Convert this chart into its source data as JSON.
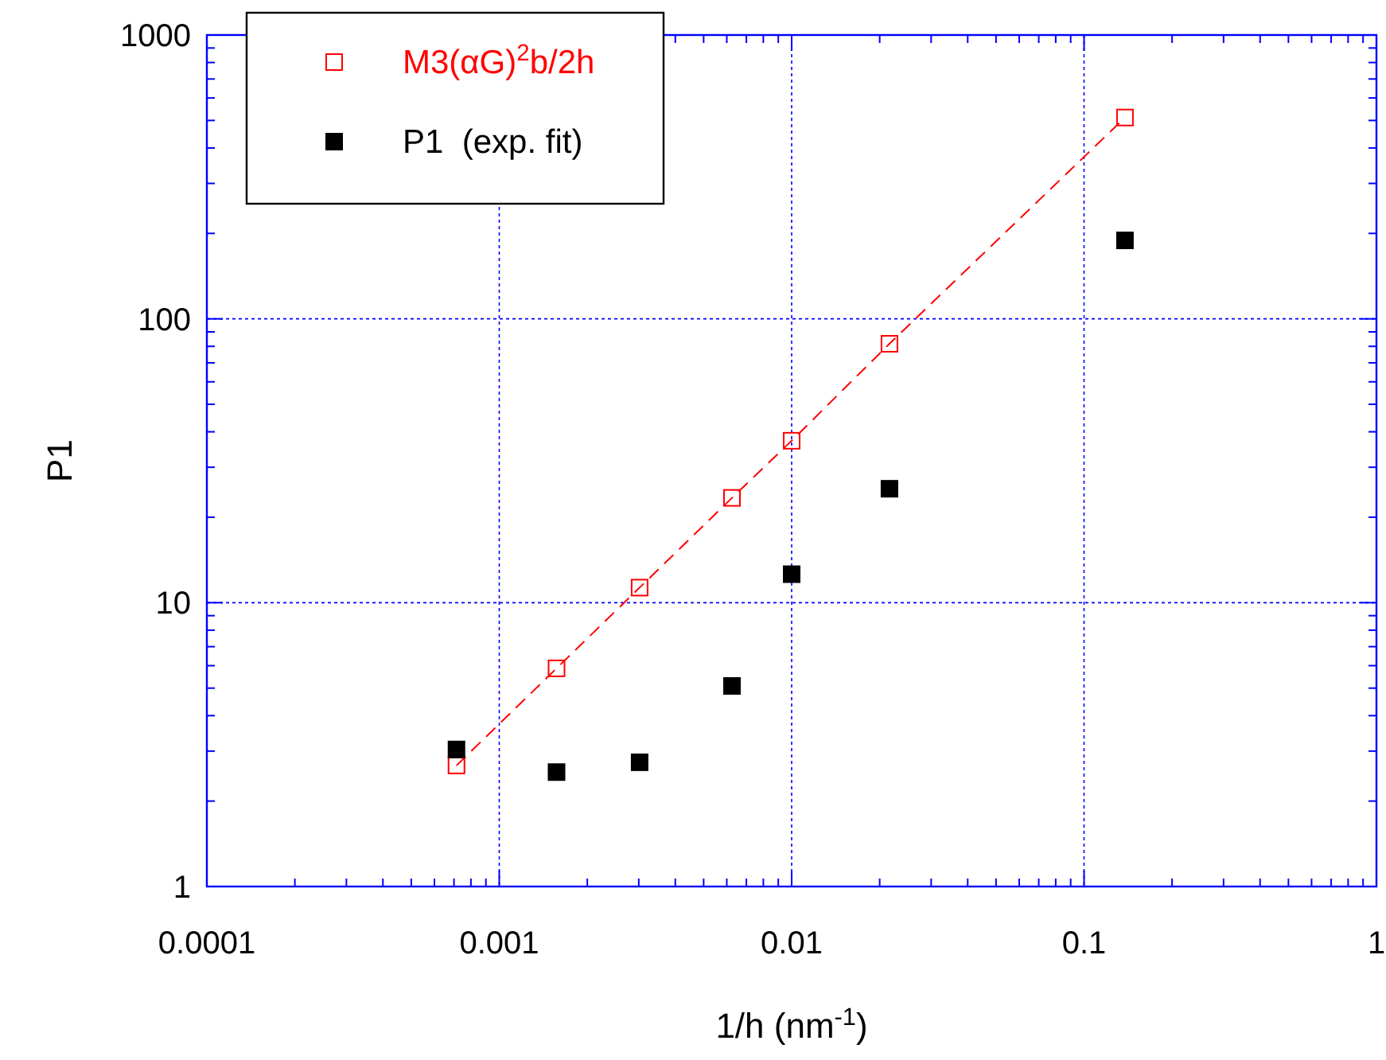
{
  "chart_data": {
    "type": "scatter",
    "xlabel": "1/h (nm$^{-1}$)",
    "ylabel": "P1",
    "log": "xy",
    "grid": true,
    "legend": "top left",
    "marker": "square",
    "xlim": [
      0.0001,
      1
    ],
    "ylim": [
      1,
      1000
    ],
    "xticks": [
      0.0001,
      {
        "value": 0.0002,
        "label": null
      },
      {
        "value": 0.0003,
        "label": null
      },
      {
        "value": 0.0004,
        "label": null
      },
      {
        "value": 0.0005,
        "label": null
      },
      {
        "value": 0.0006,
        "label": null
      },
      {
        "value": 0.0007,
        "label": null
      },
      {
        "value": 0.0008,
        "label": null
      },
      {
        "value": 0.0009,
        "label": null
      },
      0.001,
      {
        "value": 0.002,
        "label": null
      },
      {
        "value": 0.003,
        "label": null
      },
      {
        "value": 0.004,
        "label": null
      },
      {
        "value": 0.005,
        "label": null
      },
      {
        "value": 0.006,
        "label": null
      },
      {
        "value": 0.007,
        "label": null
      },
      {
        "value": 0.008,
        "label": null
      },
      {
        "value": 0.009,
        "label": null
      },
      0.01,
      {
        "value": 0.02,
        "label": null
      },
      {
        "value": 0.03,
        "label": null
      },
      {
        "value": 0.04,
        "label": null
      },
      {
        "value": 0.05,
        "label": null
      },
      {
        "value": 0.06,
        "label": null
      },
      {
        "value": 0.07,
        "label": null
      },
      {
        "value": 0.08,
        "label": null
      },
      {
        "value": 0.09,
        "label": null
      },
      0.1,
      {
        "value": 0.2,
        "label": null
      },
      {
        "value": 0.3,
        "label": null
      },
      {
        "value": 0.4,
        "label": null
      },
      {
        "value": 0.5,
        "label": null
      },
      {
        "value": 0.6,
        "label": null
      },
      {
        "value": 0.7,
        "label": null
      },
      {
        "value": 0.8,
        "label": null
      },
      {
        "value": 0.9,
        "label": null
      },
      1
    ],
    "yticks": [
      1,
      {
        "value": 2,
        "label": null
      },
      {
        "value": 3,
        "label": null
      },
      {
        "value": 4,
        "label": null
      },
      {
        "value": 5,
        "label": null
      },
      {
        "value": 6,
        "label": null
      },
      {
        "value": 7,
        "label": null
      },
      {
        "value": 8,
        "label": null
      },
      {
        "value": 9,
        "label": null
      },
      10,
      {
        "value": 20,
        "label": null
      },
      {
        "value": 30,
        "label": null
      },
      {
        "value": 40,
        "label": null
      },
      {
        "value": 50,
        "label": null
      },
      {
        "value": 60,
        "label": null
      },
      {
        "value": 70,
        "label": null
      },
      {
        "value": 80,
        "label": null
      },
      {
        "value": 90,
        "label": null
      },
      100,
      {
        "value": 200,
        "label": null
      },
      {
        "value": 300,
        "label": null
      },
      {
        "value": 400,
        "label": null
      },
      {
        "value": 500,
        "label": null
      },
      {
        "value": 600,
        "label": null
      },
      {
        "value": 700,
        "label": null
      },
      {
        "value": 800,
        "label": null
      },
      {
        "value": 900,
        "label": null
      },
      1000
    ],
    "series": [
      {
        "name": "M3(αG)$^{2}$b/2h",
        "type": "line",
        "line_style": "dashed",
        "color": "#ff0000",
        "x": [
          0.000714,
          0.00157,
          0.00302,
          0.00625,
          0.01,
          0.0216,
          0.138
        ],
        "values": [
          2.67,
          5.87,
          11.3,
          23.4,
          37.2,
          81.7,
          512
        ]
      },
      {
        "name": "P1  (exp. fit)",
        "color": "#000000",
        "x": [
          0.000714,
          0.00157,
          0.00302,
          0.00625,
          0.01,
          0.0216,
          0.138
        ],
        "values": [
          3.04,
          2.53,
          2.74,
          5.09,
          12.6,
          25.2,
          189
        ]
      }
    ]
  }
}
